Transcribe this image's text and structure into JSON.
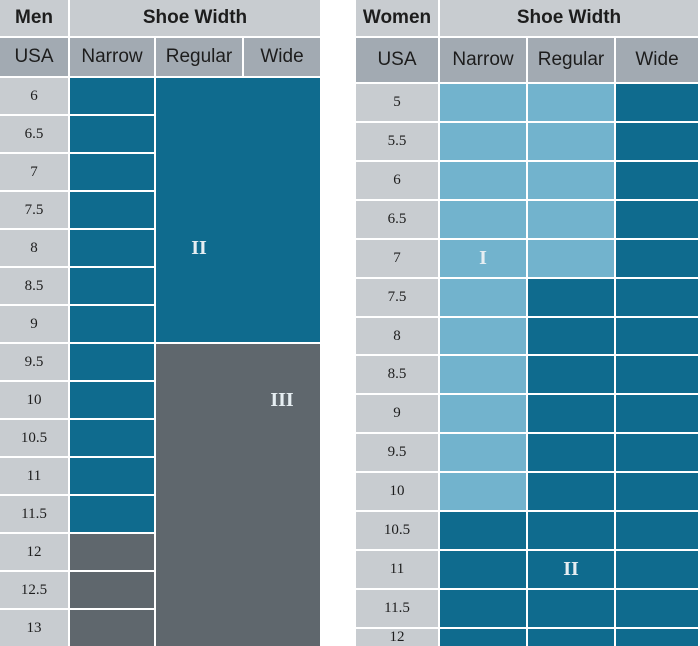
{
  "colors": {
    "header_bg": "#c8ccd0",
    "subheader_bg": "#a2aab2",
    "dark_blue": "#0f6b8e",
    "light_blue": "#72b3cd",
    "gray": "#5f676d",
    "zone_label": "#e6eef2"
  },
  "men": {
    "title": "Men",
    "width_title": "Shoe Width",
    "usa_label": "USA",
    "columns": [
      "Narrow",
      "Regular",
      "Wide"
    ],
    "sizes": [
      "6",
      "6.5",
      "7",
      "7.5",
      "8",
      "8.5",
      "9",
      "9.5",
      "10",
      "10.5",
      "11",
      "11.5",
      "12",
      "12.5",
      "13"
    ],
    "zone_labels": [
      "II",
      "III"
    ]
  },
  "women": {
    "title": "Women",
    "width_title": "Shoe Width",
    "usa_label": "USA",
    "columns": [
      "Narrow",
      "Regular",
      "Wide"
    ],
    "sizes": [
      "5",
      "5.5",
      "6",
      "6.5",
      "7",
      "7.5",
      "8",
      "8.5",
      "9",
      "9.5",
      "10",
      "10.5",
      "11",
      "11.5",
      "12"
    ],
    "zone_labels": [
      "I",
      "II"
    ]
  }
}
